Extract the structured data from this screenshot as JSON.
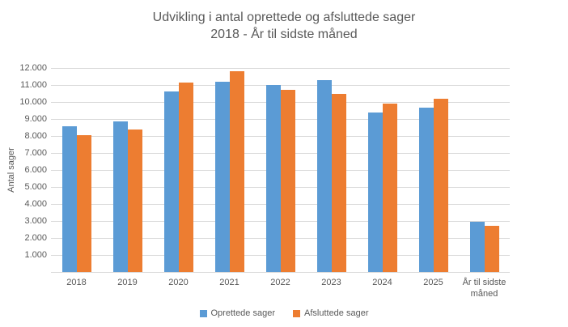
{
  "title": {
    "line1": "Udvikling i antal oprettede og afsluttede sager",
    "line2": "2018 - År til sidste måned"
  },
  "y_axis": {
    "title": "Antal sager",
    "tick_labels": [
      "1.000",
      "2.000",
      "3.000",
      "4.000",
      "5.000",
      "6.000",
      "7.000",
      "8.000",
      "9.000",
      "10.000",
      "11.000",
      "12.000"
    ],
    "tick_values": [
      1000,
      2000,
      3000,
      4000,
      5000,
      6000,
      7000,
      8000,
      9000,
      10000,
      11000,
      12000
    ]
  },
  "legend": {
    "items": [
      {
        "label": "Oprettede sager",
        "color": "#5B9BD5"
      },
      {
        "label": "Afsluttede sager",
        "color": "#ED7D31"
      }
    ]
  },
  "colors": {
    "series_blue": "#5B9BD5",
    "series_orange": "#ED7D31",
    "gridline": "#d9d9d9",
    "text": "#595959"
  },
  "chart_data": {
    "type": "bar",
    "title": "Udvikling i antal oprettede og afsluttede sager 2018 - År til sidste måned",
    "xlabel": "",
    "ylabel": "Antal sager",
    "ylim": [
      0,
      12000
    ],
    "grid": true,
    "legend_position": "bottom",
    "categories": [
      "2018",
      "2019",
      "2020",
      "2021",
      "2022",
      "2023",
      "2024",
      "2025",
      "År til sidste måned"
    ],
    "series": [
      {
        "name": "Oprettede sager",
        "color": "#5B9BD5",
        "values": [
          8550,
          8850,
          10600,
          11200,
          11000,
          11300,
          9400,
          9650,
          2950
        ]
      },
      {
        "name": "Afsluttede sager",
        "color": "#ED7D31",
        "values": [
          8050,
          8400,
          11150,
          11800,
          10700,
          10500,
          9900,
          10200,
          2700
        ]
      }
    ]
  }
}
